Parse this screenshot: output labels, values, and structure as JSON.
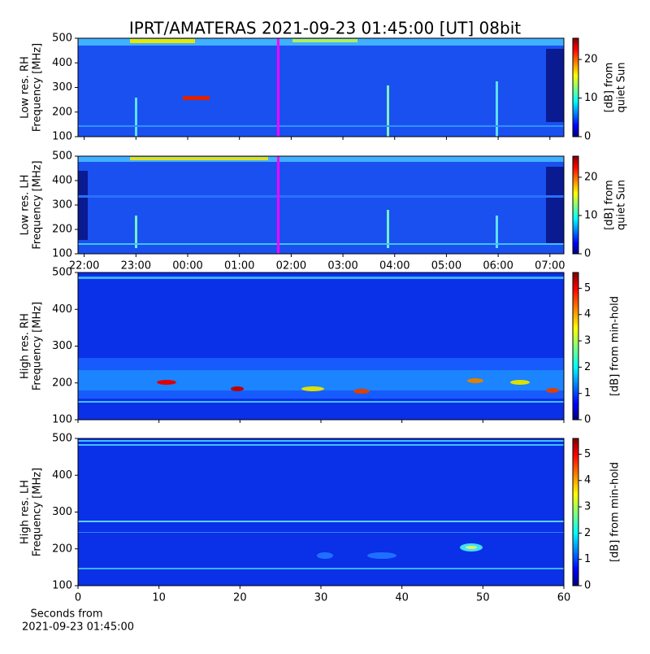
{
  "title": "IPRT/AMATERAS 2021-09-23 01:45:00 [UT]   08bit",
  "chart_data": [
    {
      "type": "heatmap",
      "colormap": "jet",
      "ylabel": [
        "Low res. RH",
        "Frequency [MHz]"
      ],
      "ylim": [
        100,
        500
      ],
      "yticks": [
        100,
        200,
        300,
        400,
        500
      ],
      "xlim": [
        -2.12,
        7.27
      ],
      "xticks": [
        -2,
        -1,
        0,
        1,
        2,
        3,
        4,
        5,
        6,
        7
      ],
      "show_xticklabels": false,
      "clim": [
        0,
        25.5
      ],
      "cticks": [
        0,
        10,
        20
      ],
      "clabel": [
        "[dB] from",
        "quiet Sun"
      ],
      "marker": {
        "x": 1.75,
        "color": "#ff00ff"
      }
    },
    {
      "type": "heatmap",
      "colormap": "jet",
      "ylabel": [
        "Low res. LH",
        "Frequency [MHz]"
      ],
      "ylim": [
        100,
        500
      ],
      "yticks": [
        100,
        200,
        300,
        400,
        500
      ],
      "xlim": [
        -2.12,
        7.27
      ],
      "xticks": [
        {
          "value": -2,
          "label": "22:00"
        },
        {
          "value": -1,
          "label": "23:00"
        },
        {
          "value": 0,
          "label": "00:00"
        },
        {
          "value": 1,
          "label": "01:00"
        },
        {
          "value": 2,
          "label": "02:00"
        },
        {
          "value": 3,
          "label": "03:00"
        },
        {
          "value": 4,
          "label": "04:00"
        },
        {
          "value": 5,
          "label": "05:00"
        },
        {
          "value": 6,
          "label": "06:00"
        },
        {
          "value": 7,
          "label": "07:00"
        }
      ],
      "show_xticklabels": true,
      "clim": [
        0,
        25.5
      ],
      "cticks": [
        0,
        10,
        20
      ],
      "clabel": [
        "[dB] from",
        "quiet Sun"
      ],
      "marker": {
        "x": 1.75,
        "color": "#ff00ff"
      }
    },
    {
      "type": "heatmap",
      "colormap": "jet",
      "ylabel": [
        "High res. RH",
        "Frequency [MHz]"
      ],
      "ylim": [
        100,
        500
      ],
      "yticks": [
        100,
        200,
        300,
        400,
        500
      ],
      "xlim": [
        0,
        60
      ],
      "xticks": [
        0,
        10,
        20,
        30,
        40,
        50,
        60
      ],
      "show_xticklabels": false,
      "clim": [
        0,
        5.6
      ],
      "cticks": [
        0,
        1,
        2,
        3,
        4,
        5
      ],
      "clabel": [
        "[dB] from min-hold"
      ]
    },
    {
      "type": "heatmap",
      "colormap": "jet",
      "ylabel": [
        "High res. LH",
        "Frequency [MHz]"
      ],
      "ylim": [
        100,
        500
      ],
      "yticks": [
        100,
        200,
        300,
        400,
        500
      ],
      "xlim": [
        0,
        60
      ],
      "xticks": [
        0,
        10,
        20,
        30,
        40,
        50,
        60
      ],
      "show_xticklabels": true,
      "xlabel": [
        "Seconds from",
        "2021-09-23 01:45:00"
      ],
      "clim": [
        0,
        5.6
      ],
      "cticks": [
        0,
        1,
        2,
        3,
        4,
        5
      ],
      "clabel": [
        "[dB] from min-hold"
      ]
    }
  ]
}
